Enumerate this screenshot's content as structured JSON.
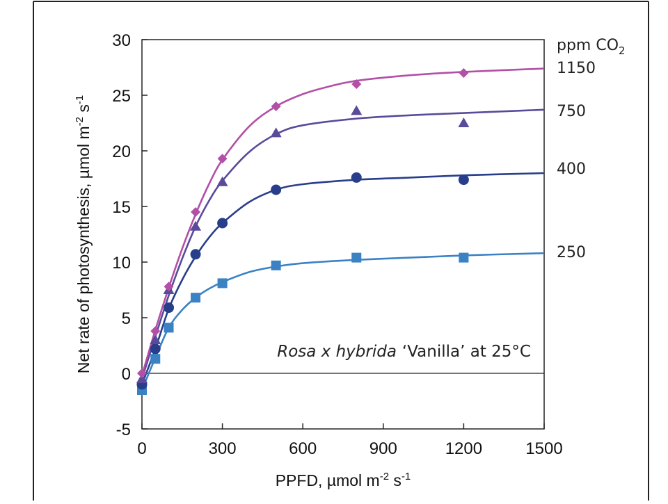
{
  "chart_data": {
    "type": "scatter",
    "title": "",
    "annotation": {
      "species": "Rosa x hybrida",
      "rest": "‘Vanilla’ at 25°C"
    },
    "xlabel": {
      "base": "PPFD, µmol m",
      "sup1": "-2",
      "mid": " s",
      "sup2": "-1"
    },
    "ylabel": {
      "base": "Net rate of photosynthesis, µmol m",
      "sup1": "-2",
      "mid": " s",
      "sup2": "-1"
    },
    "xlim": [
      0,
      1500
    ],
    "ylim": [
      -5,
      30
    ],
    "xticks": [
      0,
      300,
      600,
      900,
      1200,
      1500
    ],
    "yticks": [
      -5,
      0,
      5,
      10,
      15,
      20,
      25,
      30
    ],
    "zero_line": true,
    "legend_title": {
      "base": "ppm CO",
      "sub": "2"
    },
    "series": [
      {
        "name": "1150",
        "color": "#b24fa6",
        "marker": "diamond",
        "points": [
          [
            0,
            0
          ],
          [
            50,
            3.8
          ],
          [
            100,
            7.8
          ],
          [
            200,
            14.5
          ],
          [
            300,
            19.3
          ],
          [
            500,
            24.0
          ],
          [
            800,
            26.0
          ],
          [
            1200,
            27.0
          ]
        ],
        "fit": [
          [
            0,
            -0.2
          ],
          [
            50,
            3.9
          ],
          [
            100,
            7.7
          ],
          [
            150,
            11.2
          ],
          [
            200,
            14.3
          ],
          [
            250,
            17.0
          ],
          [
            300,
            19.2
          ],
          [
            400,
            22.2
          ],
          [
            500,
            24.0
          ],
          [
            600,
            25.1
          ],
          [
            700,
            25.8
          ],
          [
            800,
            26.3
          ],
          [
            1000,
            26.8
          ],
          [
            1200,
            27.1
          ],
          [
            1500,
            27.4
          ]
        ]
      },
      {
        "name": "750",
        "color": "#5a4a9a",
        "marker": "triangle",
        "points": [
          [
            0,
            -0.5
          ],
          [
            50,
            3.0
          ],
          [
            100,
            7.5
          ],
          [
            200,
            13.2
          ],
          [
            300,
            17.2
          ],
          [
            500,
            21.6
          ],
          [
            800,
            23.6
          ],
          [
            1200,
            22.5
          ]
        ],
        "fit": [
          [
            0,
            -0.5
          ],
          [
            50,
            3.3
          ],
          [
            100,
            7.0
          ],
          [
            150,
            10.3
          ],
          [
            200,
            13.2
          ],
          [
            250,
            15.5
          ],
          [
            300,
            17.3
          ],
          [
            400,
            19.9
          ],
          [
            500,
            21.5
          ],
          [
            600,
            22.3
          ],
          [
            800,
            22.9
          ],
          [
            1000,
            23.2
          ],
          [
            1200,
            23.4
          ],
          [
            1500,
            23.7
          ]
        ]
      },
      {
        "name": "400",
        "color": "#283e8a",
        "marker": "circle",
        "points": [
          [
            0,
            -1.0
          ],
          [
            50,
            2.2
          ],
          [
            100,
            5.9
          ],
          [
            200,
            10.7
          ],
          [
            300,
            13.5
          ],
          [
            500,
            16.5
          ],
          [
            800,
            17.6
          ],
          [
            1200,
            17.4
          ]
        ],
        "fit": [
          [
            0,
            -1.0
          ],
          [
            50,
            2.2
          ],
          [
            100,
            5.8
          ],
          [
            150,
            8.4
          ],
          [
            200,
            10.5
          ],
          [
            250,
            12.2
          ],
          [
            300,
            13.5
          ],
          [
            400,
            15.4
          ],
          [
            500,
            16.5
          ],
          [
            600,
            17.0
          ],
          [
            800,
            17.4
          ],
          [
            1000,
            17.6
          ],
          [
            1200,
            17.8
          ],
          [
            1500,
            18.0
          ]
        ]
      },
      {
        "name": "250",
        "color": "#3a82c4",
        "marker": "square",
        "points": [
          [
            0,
            -1.5
          ],
          [
            50,
            1.3
          ],
          [
            100,
            4.1
          ],
          [
            200,
            6.8
          ],
          [
            300,
            8.1
          ],
          [
            500,
            9.7
          ],
          [
            800,
            10.4
          ],
          [
            1200,
            10.4
          ]
        ],
        "fit": [
          [
            0,
            -1.5
          ],
          [
            50,
            1.4
          ],
          [
            100,
            4.1
          ],
          [
            150,
            5.7
          ],
          [
            200,
            6.8
          ],
          [
            250,
            7.6
          ],
          [
            300,
            8.2
          ],
          [
            400,
            9.1
          ],
          [
            500,
            9.6
          ],
          [
            600,
            9.9
          ],
          [
            800,
            10.2
          ],
          [
            1000,
            10.4
          ],
          [
            1200,
            10.6
          ],
          [
            1500,
            10.8
          ]
        ]
      }
    ]
  }
}
